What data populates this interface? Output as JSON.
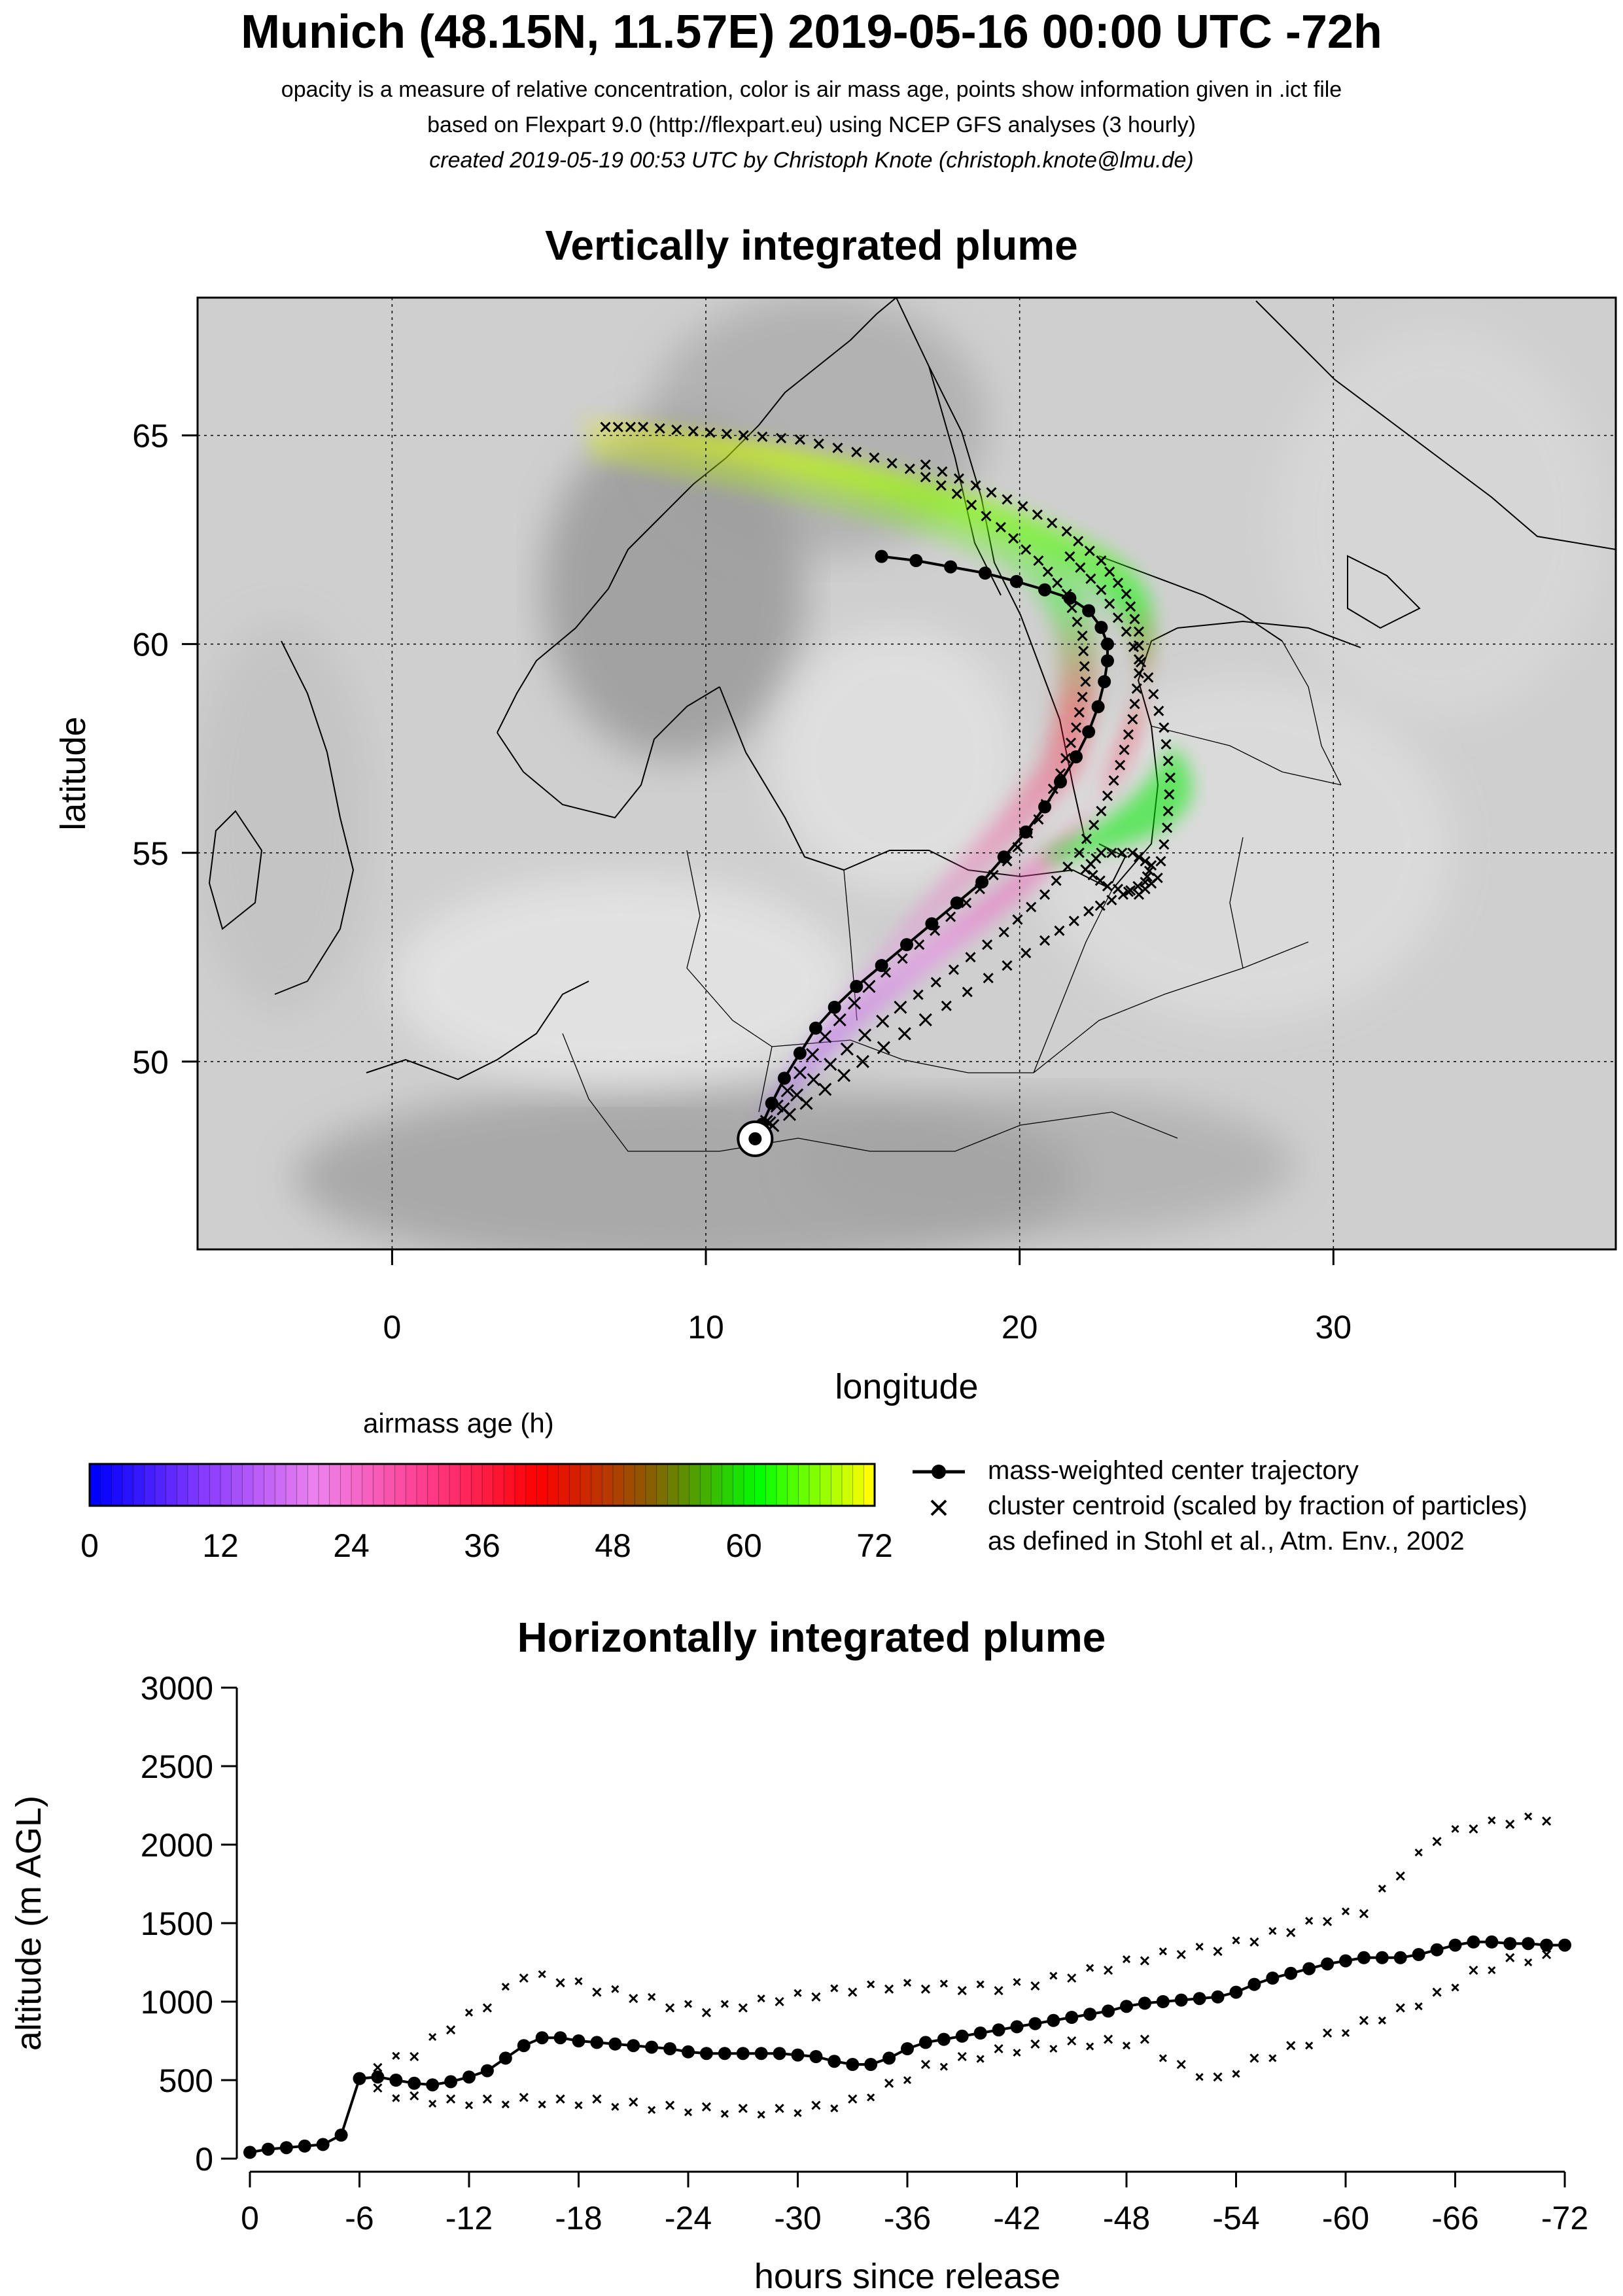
{
  "header": {
    "title": "Munich (48.15N, 11.57E) 2019-05-16 00:00 UTC -72h",
    "line1": "opacity is a measure of relative concentration, color is air mass age, points show information given in .ict file",
    "line2": "based on Flexpart 9.0 (http://flexpart.eu) using NCEP GFS analyses (3 hourly)",
    "line3": "created 2019-05-19 00:53 UTC by Christoph Knote (christoph.knote@lmu.de)"
  },
  "colors": {
    "age_scale": [
      "#0000ff",
      "#8a3cff",
      "#ee82ee",
      "#ff3c8c",
      "#ff0000",
      "#8c5a00",
      "#00ff00",
      "#ffff00"
    ],
    "map_background": "#cfcfcf",
    "land_outline": "#000000"
  },
  "colorbar": {
    "title": "airmass age (h)",
    "ticks": [
      "0",
      "12",
      "24",
      "36",
      "48",
      "60",
      "72"
    ]
  },
  "legend": {
    "center": "mass-weighted center trajectory",
    "cluster": "cluster centroid (scaled by fraction of particles)",
    "cluster_note": "as defined in Stohl et al., Atm. Env., 2002"
  },
  "chart_data": [
    {
      "type": "scatter",
      "title": "Vertically integrated plume",
      "xlabel": "longitude",
      "ylabel": "latitude",
      "xlim": [
        -6.2,
        39
      ],
      "ylim": [
        45.5,
        68.3
      ],
      "grid": true,
      "xticks": [
        0,
        10,
        20,
        30
      ],
      "yticks": [
        50,
        55,
        60,
        65
      ],
      "release_point": {
        "lon": 11.57,
        "lat": 48.15
      },
      "center_trajectory": {
        "lon": [
          11.57,
          11.8,
          12.1,
          12.5,
          13.0,
          13.5,
          14.1,
          14.8,
          15.6,
          16.4,
          17.2,
          18.0,
          18.8,
          19.5,
          20.2,
          20.8,
          21.3,
          21.8,
          22.2,
          22.5,
          22.7,
          22.8,
          22.8,
          22.6,
          22.2,
          21.6,
          20.8,
          19.9,
          18.9,
          17.8,
          16.7,
          15.6
        ],
        "lat": [
          48.15,
          48.5,
          49.0,
          49.6,
          50.2,
          50.8,
          51.3,
          51.8,
          52.3,
          52.8,
          53.3,
          53.8,
          54.3,
          54.9,
          55.5,
          56.1,
          56.7,
          57.3,
          57.9,
          58.5,
          59.1,
          59.6,
          60.0,
          60.4,
          60.8,
          61.1,
          61.3,
          61.5,
          61.7,
          61.85,
          62.0,
          62.1
        ]
      },
      "cluster_tracks": [
        {
          "lon": [
            11.6,
            12.6,
            13.8,
            15.2,
            16.8,
            18.3,
            19.6,
            20.6,
            21.3,
            21.8,
            22.1,
            22.0,
            21.5,
            20.6,
            19.4,
            18.0,
            16.5,
            14.8,
            13.0,
            11.2,
            9.6,
            8.0,
            6.8
          ],
          "lat": [
            48.2,
            49.3,
            50.6,
            51.8,
            52.8,
            53.8,
            54.8,
            55.8,
            56.9,
            58.0,
            59.1,
            60.2,
            61.2,
            62.0,
            62.8,
            63.6,
            64.2,
            64.6,
            64.9,
            65.0,
            65.1,
            65.2,
            65.2
          ]
        },
        {
          "lon": [
            11.6,
            12.9,
            14.5,
            16.2,
            17.9,
            19.5,
            20.8,
            21.9,
            22.6,
            23.2,
            23.6,
            23.8,
            23.8,
            23.4,
            22.6,
            21.5,
            20.1,
            18.6,
            17.0
          ],
          "lat": [
            48.2,
            49.2,
            50.3,
            51.3,
            52.2,
            53.1,
            54.0,
            55.0,
            56.0,
            57.1,
            58.2,
            59.3,
            60.3,
            61.2,
            62.0,
            62.7,
            63.3,
            63.8,
            64.3
          ]
        },
        {
          "lon": [
            11.6,
            13.2,
            15.0,
            17.0,
            19.0,
            20.8,
            22.2,
            23.3,
            24.0,
            24.2,
            23.6,
            22.6,
            22.1,
            22.8,
            23.8,
            24.4,
            24.7,
            24.8,
            24.6,
            24.1,
            23.4,
            22.6,
            21.6
          ],
          "lat": [
            48.2,
            49.0,
            50.0,
            51.0,
            52.0,
            52.9,
            53.6,
            54.0,
            54.3,
            54.7,
            55.0,
            55.0,
            54.6,
            54.2,
            54.0,
            54.4,
            55.6,
            56.8,
            58.0,
            59.2,
            60.3,
            61.3,
            62.1
          ]
        }
      ]
    },
    {
      "type": "scatter",
      "title": "Horizontally integrated plume",
      "xlabel": "hours since release",
      "ylabel": "altitude (m AGL)",
      "xlim": [
        0,
        -72
      ],
      "ylim": [
        0,
        3000
      ],
      "xticks": [
        "0",
        "-6",
        "-12",
        "-18",
        "-24",
        "-30",
        "-36",
        "-42",
        "-48",
        "-54",
        "-60",
        "-66",
        "-72"
      ],
      "yticks": [
        "0",
        "500",
        "1000",
        "1500",
        "2000",
        "2500",
        "3000"
      ],
      "center_trajectory": {
        "x": [
          0,
          -1,
          -2,
          -3,
          -4,
          -5,
          -6,
          -7,
          -8,
          -9,
          -10,
          -11,
          -12,
          -13,
          -14,
          -15,
          -16,
          -17,
          -18,
          -19,
          -20,
          -21,
          -22,
          -23,
          -24,
          -25,
          -26,
          -27,
          -28,
          -29,
          -30,
          -31,
          -32,
          -33,
          -34,
          -35,
          -36,
          -37,
          -38,
          -39,
          -40,
          -41,
          -42,
          -43,
          -44,
          -45,
          -46,
          -47,
          -48,
          -49,
          -50,
          -51,
          -52,
          -53,
          -54,
          -55,
          -56,
          -57,
          -58,
          -59,
          -60,
          -61,
          -62,
          -63,
          -64,
          -65,
          -66,
          -67,
          -68,
          -69,
          -70,
          -71,
          -72
        ],
        "y": [
          40,
          60,
          70,
          80,
          90,
          150,
          510,
          520,
          500,
          480,
          470,
          490,
          520,
          560,
          640,
          720,
          770,
          770,
          750,
          740,
          730,
          720,
          710,
          700,
          680,
          670,
          670,
          670,
          670,
          670,
          660,
          650,
          620,
          600,
          600,
          640,
          700,
          740,
          760,
          780,
          800,
          820,
          840,
          860,
          880,
          900,
          920,
          940,
          970,
          990,
          1000,
          1010,
          1020,
          1030,
          1060,
          1110,
          1150,
          1180,
          1210,
          1240,
          1260,
          1280,
          1280,
          1280,
          1300,
          1330,
          1360,
          1380,
          1380,
          1370,
          1370,
          1360,
          1360
        ]
      },
      "cluster_upper": {
        "x": [
          -7,
          -9,
          -11,
          -13,
          -15,
          -17,
          -19,
          -21,
          -23,
          -25,
          -27,
          -29,
          -31,
          -33,
          -35,
          -37,
          -39,
          -41,
          -43,
          -45,
          -47,
          -49,
          -51,
          -53,
          -55,
          -57,
          -59,
          -61,
          -63,
          -65,
          -67,
          -69,
          -71
        ],
        "y": [
          580,
          650,
          820,
          960,
          1150,
          1120,
          1060,
          1020,
          960,
          930,
          960,
          1000,
          1030,
          1060,
          1080,
          1080,
          1070,
          1070,
          1100,
          1150,
          1200,
          1260,
          1300,
          1320,
          1380,
          1440,
          1510,
          1560,
          1800,
          2020,
          2100,
          2130,
          2150
        ]
      },
      "cluster_lower": {
        "x": [
          -7,
          -9,
          -11,
          -13,
          -15,
          -17,
          -19,
          -21,
          -23,
          -25,
          -27,
          -29,
          -31,
          -33,
          -35,
          -37,
          -39,
          -41,
          -43,
          -45,
          -47,
          -49,
          -51,
          -53,
          -55,
          -57,
          -59,
          -61,
          -63,
          -65,
          -67,
          -69,
          -71
        ],
        "y": [
          450,
          400,
          380,
          380,
          390,
          380,
          380,
          360,
          340,
          330,
          320,
          320,
          340,
          380,
          480,
          600,
          650,
          700,
          730,
          750,
          760,
          760,
          600,
          520,
          640,
          720,
          800,
          880,
          960,
          1060,
          1200,
          1280,
          1300
        ]
      }
    }
  ]
}
